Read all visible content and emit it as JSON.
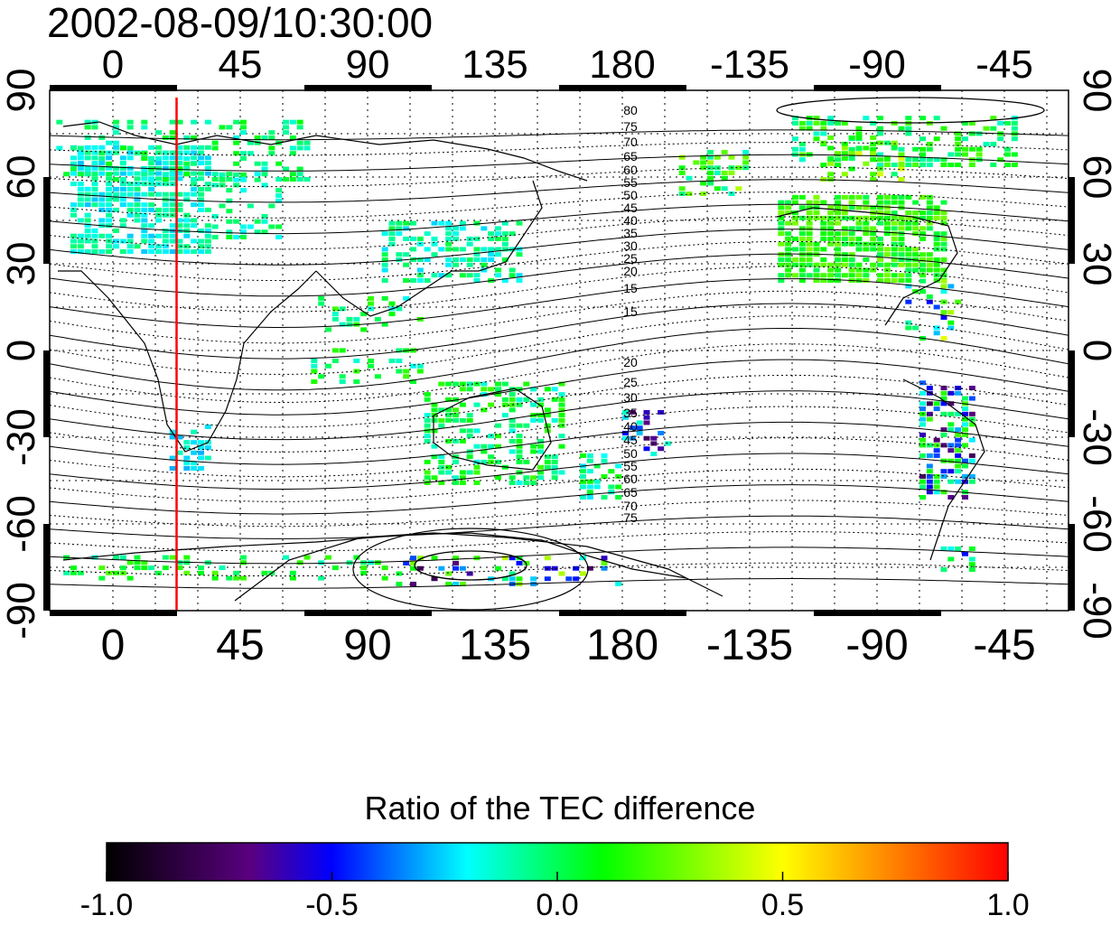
{
  "chart_data": {
    "type": "heatmap",
    "title": "2002-08-09/10:30:00",
    "top_ticks": [
      "0",
      "45",
      "90",
      "135",
      "180",
      "-135",
      "-90",
      "-45"
    ],
    "bottom_ticks": [
      "0",
      "45",
      "90",
      "135",
      "180",
      "-135",
      "-90",
      "-45"
    ],
    "left_ticks": [
      "90",
      "60",
      "30",
      "0",
      "-30",
      "-60",
      "-90"
    ],
    "right_ticks": [
      "90",
      "60",
      "30",
      "0",
      "-30",
      "-60",
      "-90"
    ],
    "contour_labels": [
      "80",
      "75",
      "70",
      "65",
      "60",
      "55",
      "50",
      "45",
      "40",
      "35",
      "30",
      "25",
      "20",
      "15",
      "15",
      "20",
      "25",
      "30",
      "35",
      "40",
      "45",
      "50",
      "55",
      "60",
      "65",
      "70",
      "75"
    ],
    "meridian_marker_longitude": 22.5,
    "meridian_marker_color": "#ff0000",
    "colorbar": {
      "title": "Ratio of the TEC difference",
      "min": -1.0,
      "max": 1.0,
      "tick_labels": [
        "-1.0",
        "-0.5",
        "0.0",
        "0.5",
        "1.0"
      ],
      "colors": [
        "#000000",
        "#5a0080",
        "#0000ff",
        "#00ffff",
        "#00ff00",
        "#ffff00",
        "#ff0000"
      ]
    }
  }
}
